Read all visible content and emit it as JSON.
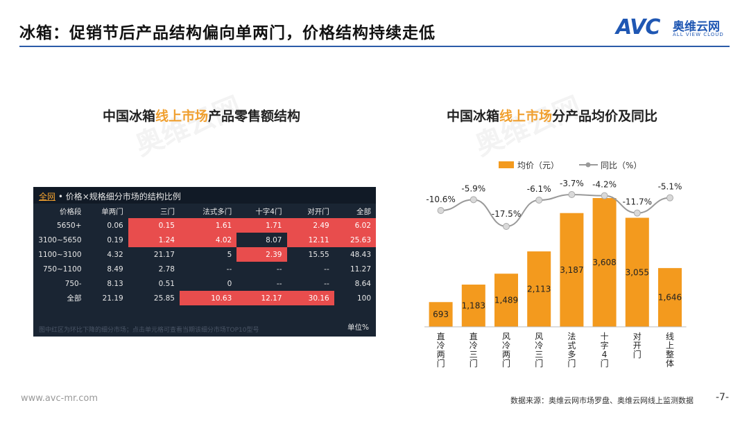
{
  "title": "冰箱：促销节后产品结构偏向单两门，价格结构持续走低",
  "logo": {
    "mark": "AVC",
    "cn": "奥维云网",
    "en": "ALL VIEW CLOUD"
  },
  "watermark": {
    "cn": "奥维云网",
    "en": "ALL VIEW CLOUD"
  },
  "left_chart": {
    "title_pre": "中国冰箱",
    "title_hl": "线上市场",
    "title_post": "产品零售额结构"
  },
  "table": {
    "header_link": "全网",
    "header_text": " • 价格×规格细分市场的结构比例",
    "columns": [
      "价格段",
      "单两门",
      "三门",
      "法式多门",
      "十字4门",
      "对开门",
      "全部"
    ],
    "rows": [
      [
        "5650+",
        "0.06",
        "0.15",
        "1.61",
        "1.71",
        "2.49",
        "6.02"
      ],
      [
        "3100~5650",
        "0.19",
        "1.24",
        "4.02",
        "8.07",
        "12.11",
        "25.63"
      ],
      [
        "1100~3100",
        "4.32",
        "21.17",
        "5",
        "2.39",
        "15.55",
        "48.43"
      ],
      [
        "750~1100",
        "8.49",
        "2.78",
        "--",
        "--",
        "--",
        "11.27"
      ],
      [
        "750-",
        "8.13",
        "0.51",
        "0",
        "--",
        "--",
        "8.64"
      ],
      [
        "全部",
        "21.19",
        "25.85",
        "10.63",
        "12.17",
        "30.16",
        "100"
      ]
    ],
    "highlight": [
      [
        0,
        0,
        1,
        1,
        1,
        1,
        1
      ],
      [
        0,
        0,
        1,
        1,
        2,
        1,
        1
      ],
      [
        0,
        0,
        0,
        0,
        1,
        0,
        0
      ],
      [
        0,
        0,
        0,
        0,
        0,
        0,
        0
      ],
      [
        0,
        0,
        0,
        0,
        0,
        0,
        0
      ],
      [
        0,
        0,
        0,
        1,
        1,
        1,
        0
      ]
    ],
    "note": "图中红区为环比下降的细分市场；点击单元格可查看当期该细分市场TOP10型号",
    "unit": "单位%",
    "colors": {
      "highlight": "#e84d4d",
      "background": "#1a2533"
    }
  },
  "right_chart": {
    "title_pre": "中国冰箱",
    "title_hl": "线上市场",
    "title_post": "分产品均价及同比"
  },
  "chart_data": {
    "type": "bar",
    "categories": [
      "直冷两门",
      "直冷三门",
      "风冷两门",
      "风冷三门",
      "法式多门",
      "十字4门",
      "对开门",
      "线上整体"
    ],
    "series": [
      {
        "name": "均价（元）",
        "type": "bar",
        "values": [
          693,
          1183,
          1489,
          2113,
          3187,
          3608,
          3055,
          1646
        ],
        "labels": [
          "693",
          "1,183",
          "1,489",
          "2,113",
          "3,187",
          "3,608",
          "3,055",
          "1,646"
        ],
        "color": "#f39a1e"
      },
      {
        "name": "同比（%）",
        "type": "line",
        "values": [
          -10.6,
          -5.9,
          -17.5,
          -6.1,
          -3.7,
          -4.2,
          -11.7,
          -5.1
        ],
        "labels": [
          "-10.6%",
          "-5.9%",
          "-17.5%",
          "-6.1%",
          "-3.7%",
          "-4.2%",
          "-11.7%",
          "-5.1%"
        ],
        "color": "#999999"
      }
    ],
    "legend_position": "top",
    "grid": false
  },
  "footer": {
    "url": "www.avc-mr.com",
    "source": "数据来源：奥维云网市场罗盘、奥维云网线上监测数据",
    "page": "-7-"
  }
}
